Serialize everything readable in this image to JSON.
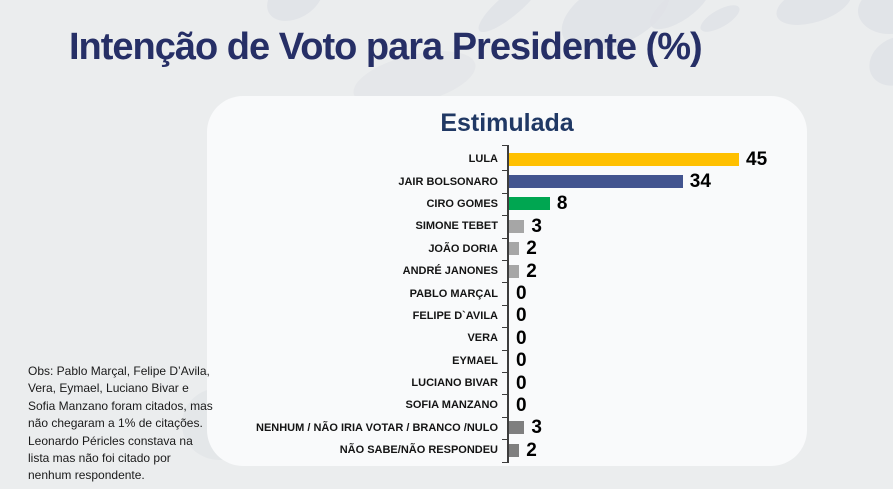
{
  "page": {
    "title": "Intenção de Voto para Presidente (%)",
    "note": "Obs: Pablo Marçal, Felipe D’Avila, Vera, Eymael, Luciano Bivar e Sofia Manzano foram citados, mas não chegaram a 1% de citações. Leonardo Péricles constava na lista mas não foi citado por nenhum respondente."
  },
  "chart_data": {
    "type": "bar",
    "orientation": "horizontal",
    "title": "Estimulada",
    "categories": [
      "LULA",
      "JAIR BOLSONARO",
      "CIRO GOMES",
      "SIMONE TEBET",
      "JOÃO DORIA",
      "ANDRÉ JANONES",
      "PABLO MARÇAL",
      "FELIPE D`AVILA",
      "VERA",
      "EYMAEL",
      "LUCIANO BIVAR",
      "SOFIA MANZANO",
      "NENHUM / NÃO IRIA VOTAR / BRANCO /NULO",
      "NÃO SABE/NÃO RESPONDEU"
    ],
    "values": [
      45,
      34,
      8,
      3,
      2,
      2,
      0,
      0,
      0,
      0,
      0,
      0,
      3,
      2
    ],
    "bar_colors": [
      "#FFC000",
      "#42548F",
      "#00A651",
      "#A6A6A6",
      "#A6A6A6",
      "#A6A6A6",
      "#A6A6A6",
      "#A6A6A6",
      "#A6A6A6",
      "#A6A6A6",
      "#A6A6A6",
      "#A6A6A6",
      "#7F7F7F",
      "#7F7F7F"
    ],
    "xlim": [
      0,
      47
    ],
    "data_labels": true,
    "legend": false,
    "grid": false
  },
  "colors": {
    "title_navy": "#262F66",
    "subtitle_navy": "#203864",
    "background": "#EBEDEE",
    "card": "#F9FAFB",
    "axis": "#3D3D3D"
  }
}
